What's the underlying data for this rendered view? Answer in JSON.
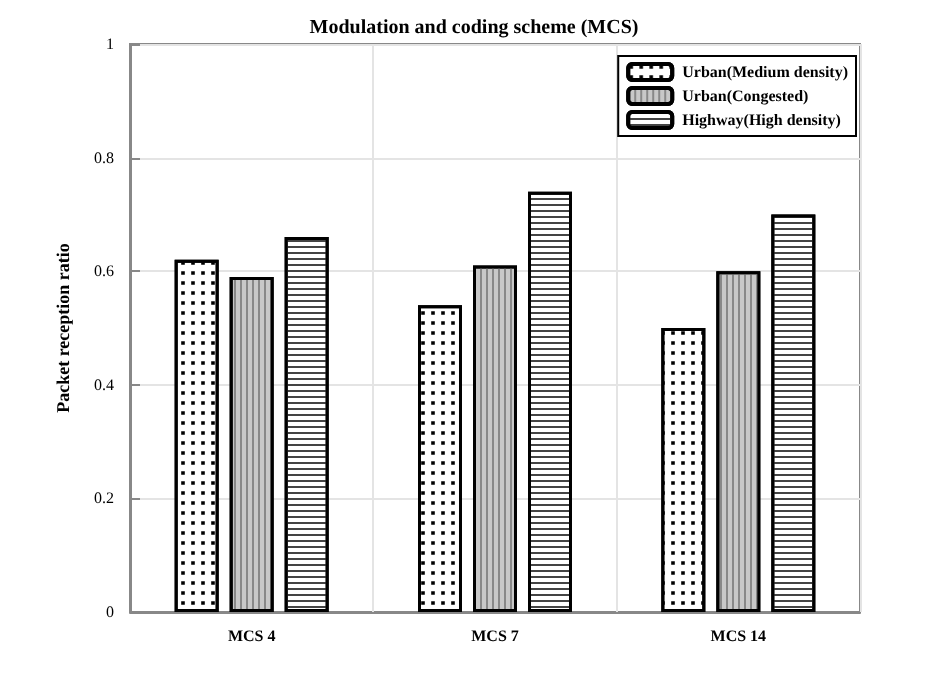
{
  "chart_data": {
    "type": "bar",
    "title": "Modulation and coding scheme (MCS)",
    "ylabel": "Packet reception ratio",
    "categories": [
      "MCS 4",
      "MCS 7",
      "MCS 14"
    ],
    "series": [
      {
        "name": "Urban(Medium density)",
        "color": "#ffffff",
        "values": [
          0.62,
          0.54,
          0.5
        ]
      },
      {
        "name": "Urban(Congested)",
        "color": "#c8c8c8",
        "values": [
          0.59,
          0.61,
          0.6
        ]
      },
      {
        "name": "Highway(High density)",
        "color": "#ffffff",
        "values": [
          0.66,
          0.74,
          0.7
        ]
      }
    ],
    "ylim": [
      0,
      1
    ],
    "yticks": [
      0,
      0.2,
      0.4,
      0.6,
      0.8,
      1
    ],
    "grid": true,
    "legend": "top right"
  }
}
